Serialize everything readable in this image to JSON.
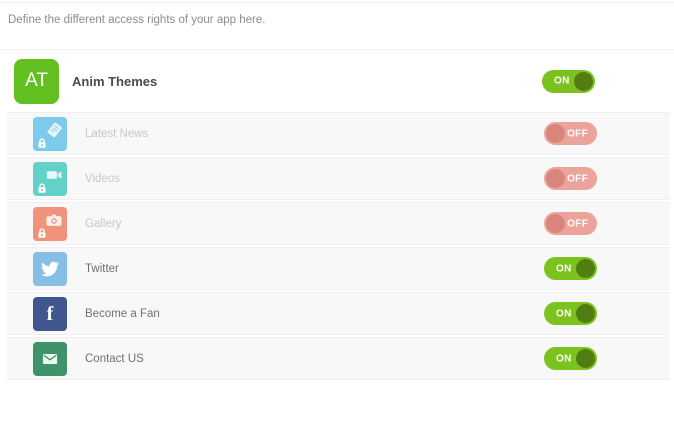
{
  "header": {
    "description": "Define the different access rights of your app here."
  },
  "app": {
    "avatar_initials": "AT",
    "name": "Anim Themes",
    "toggle_state": "on",
    "toggle_label": "ON"
  },
  "toggle_labels": {
    "on": "ON",
    "off": "OFF"
  },
  "colors": {
    "toggle_on_bg": "#7cc21e",
    "toggle_on_knob": "#527e11",
    "toggle_off_bg": "#eca39b",
    "toggle_off_knob": "#d9857c",
    "avatar_bg": "#61c01f",
    "row_bg": "#f8f8f8",
    "divider": "#f0f0f0"
  },
  "rows": [
    {
      "label": "Latest News",
      "icon": "news-icon",
      "icon_color": "#7ccbeb",
      "state": "off",
      "locked": true
    },
    {
      "label": "Videos",
      "icon": "video-camera-icon",
      "icon_color": "#63d1c8",
      "state": "off",
      "locked": true
    },
    {
      "label": "Gallery",
      "icon": "photo-camera-icon",
      "icon_color": "#ef937d",
      "state": "off",
      "locked": true
    },
    {
      "label": "Twitter",
      "icon": "twitter-icon",
      "icon_color": "#86bfe5",
      "state": "on",
      "locked": false
    },
    {
      "label": "Become a Fan",
      "icon": "facebook-icon",
      "icon_color": "#41568e",
      "state": "on",
      "locked": false
    },
    {
      "label": "Contact US",
      "icon": "mail-icon",
      "icon_color": "#3e9468",
      "state": "on",
      "locked": false
    }
  ]
}
